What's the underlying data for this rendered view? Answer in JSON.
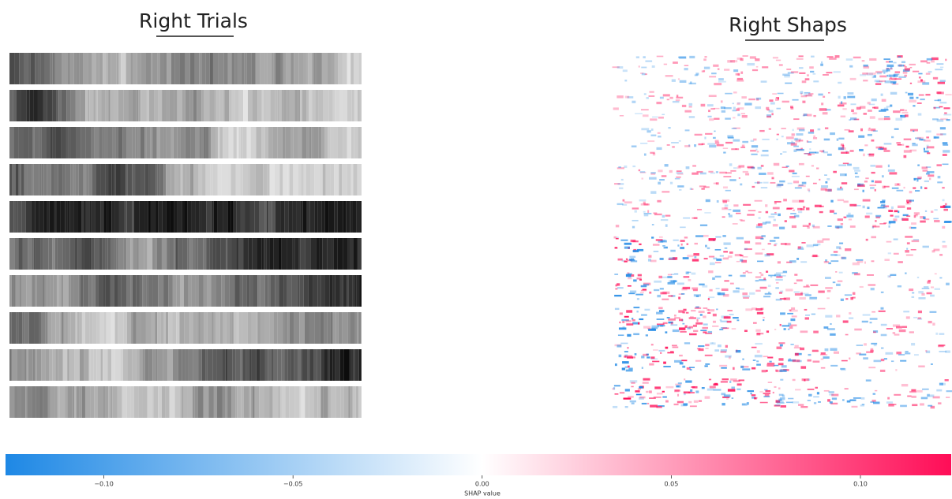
{
  "left_panel": {
    "title": "Right Trials"
  },
  "right_panel": {
    "title": "Right Shaps"
  },
  "colorbar": {
    "label": "SHAP value",
    "lim": [
      -0.126,
      0.124
    ],
    "ticks": [
      {
        "value": -0.1,
        "label": "−0.10"
      },
      {
        "value": -0.05,
        "label": "−0.05"
      },
      {
        "value": 0,
        "label": "0.00"
      },
      {
        "value": 0.05,
        "label": "0.05"
      },
      {
        "value": 0.1,
        "label": "0.10"
      }
    ],
    "low_color": "#1e88e5",
    "high_color": "#ff0d57"
  }
}
